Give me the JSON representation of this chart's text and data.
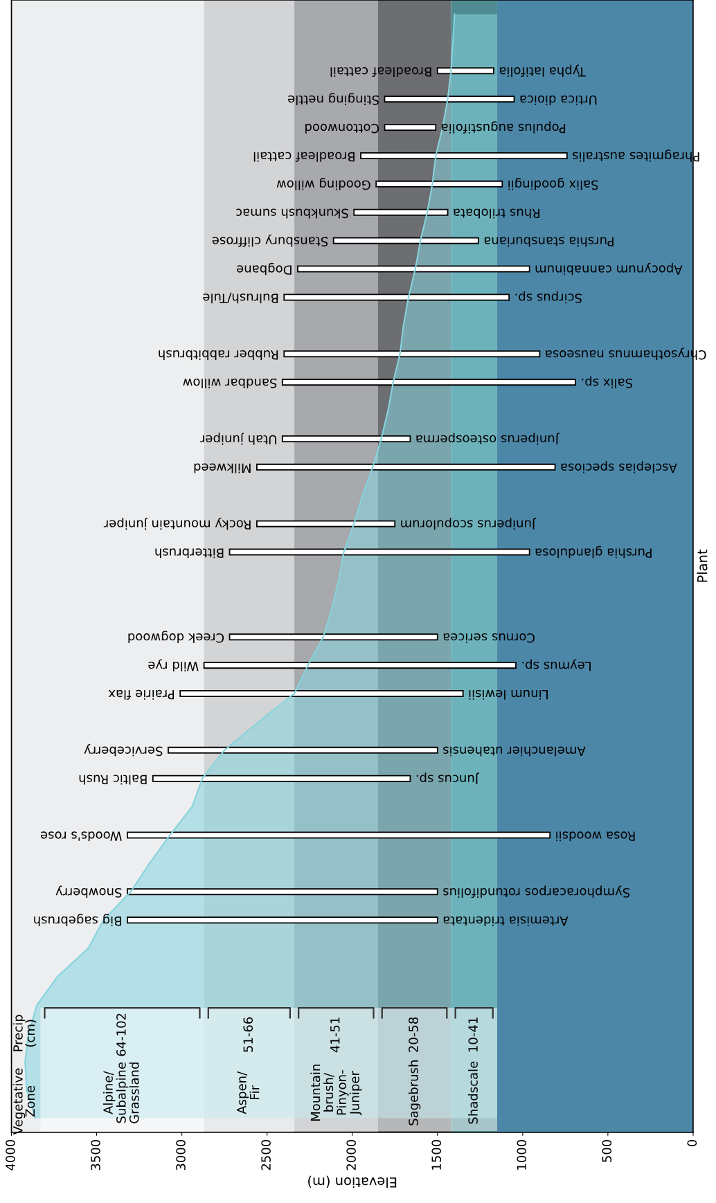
{
  "chart_data": {
    "type": "bar",
    "orientation": "horizontal",
    "xlabel": "Elevation (m)",
    "ylabel": "Plant",
    "categories": [
      null,
      null,
      "Broadleaf cattail",
      "Stinging nettle",
      "Cottonwood",
      "Broadleaf cattail",
      "Gooding willow",
      "Skunkbush sumac",
      "Stansbury cliffrose",
      "Dogbane",
      "Bulrush/Tule",
      null,
      "Rubber rabbitbrush",
      "Sandbar willow",
      null,
      "Utah juniper",
      "Milkweed",
      null,
      "Rocky mountain juniper",
      "Bitterbrush",
      null,
      null,
      "Creek dogwood",
      "Wild rye",
      "Prairie flax",
      null,
      "Serviceberry",
      "Baltic Rush",
      null,
      "Woods's rose",
      null,
      "Snowberry",
      "Big sagebrush",
      null,
      null,
      null,
      null,
      null,
      null,
      null
    ],
    "series": [
      {
        "color": "#ffffff",
        "base": [
          null,
          null,
          1170,
          1050,
          1510,
          740,
          1120,
          1440,
          1260,
          960,
          1080,
          null,
          900,
          690,
          null,
          1660,
          810,
          null,
          1750,
          960,
          null,
          null,
          1500,
          1040,
          1350,
          null,
          1500,
          1660,
          null,
          840,
          null,
          1500,
          1500,
          null,
          null,
          null,
          null,
          null,
          null,
          null
        ],
        "values": [
          null,
          null,
          330,
          760,
          300,
          1210,
          740,
          550,
          850,
          1360,
          1320,
          null,
          1500,
          1720,
          null,
          750,
          1750,
          null,
          810,
          1760,
          null,
          null,
          1220,
          1830,
          1660,
          null,
          1580,
          1510,
          null,
          2480,
          null,
          1820,
          1820,
          null,
          null,
          null,
          null,
          null,
          null,
          null
        ],
        "value_labels": [
          null,
          null,
          "Typha latifolia",
          "Urtica dioica",
          "Populus augustifolia",
          "Phragmites australis",
          "Salix goodingii",
          "Rhus trilobata",
          "Purshia stansburiana",
          "Apocynum cannabinum",
          "Scirpus sp.",
          null,
          "Chrysothamnus nauseosa",
          "Salix sp.",
          null,
          "Juniperus osteosperma",
          "Asclepias speciosa",
          null,
          "Juniperus scopulorum",
          "Purshia glandulosa",
          null,
          null,
          "Cornus sericea",
          "Leymus sp.",
          "Linum lewisii",
          null,
          "Amelanchier utahensis",
          "Juncus sp.",
          null,
          "Rosa woodsii",
          null,
          "Symphoracarpos rotundifolius",
          "Artemisia tridentata",
          null,
          null,
          null,
          null,
          null,
          null,
          null
        ]
      },
      {
        "type": "area",
        "color": "#86d3de",
        "values": [
          1400,
          1410,
          1420,
          1440,
          1470,
          1510,
          1530,
          1560,
          1600,
          1630,
          1670,
          1700,
          1720,
          1760,
          1790,
          1830,
          1880,
          1940,
          1990,
          2050,
          2080,
          2120,
          2170,
          2260,
          2340,
          2550,
          2750,
          2880,
          2940,
          3070,
          3190,
          3300,
          3460,
          3550,
          3730,
          3850,
          3900,
          3920,
          3910,
          3860
        ]
      }
    ],
    "xlim": [
      4000,
      0
    ],
    "xticks": [
      4000,
      3500,
      3000,
      2500,
      2000,
      1500,
      1000,
      500,
      0
    ],
    "bands": [
      {
        "axis": "x",
        "from": 2870,
        "to": 4000,
        "label": "Alpine/\nSubalpine\nGrassland",
        "color": "#eceef0"
      },
      {
        "axis": "x",
        "from": 2340,
        "to": 2870,
        "label": "Aspen/\nFir",
        "color": "#d3d4d6"
      },
      {
        "axis": "x",
        "from": 1850,
        "to": 2340,
        "label": "Mountain\nbrush/\nPinyon-\nJuniper",
        "color": "#a7a9ac"
      },
      {
        "axis": "x",
        "from": 1420,
        "to": 1850,
        "label": "Sagebrush",
        "color": "#6d6e71"
      },
      {
        "axis": "x",
        "from": 1150,
        "to": 1420,
        "label": "Shadscale",
        "color": "#4f8a91"
      },
      {
        "axis": "x",
        "from": 0,
        "to": 1150,
        "color": "#4d87a8"
      }
    ],
    "annotations": [
      "Vegetative\nZone",
      "Precip\n(cm)",
      "64-102",
      "51-66",
      "41-51",
      "20-58",
      "10-41"
    ],
    "grid": false,
    "legend": false
  }
}
